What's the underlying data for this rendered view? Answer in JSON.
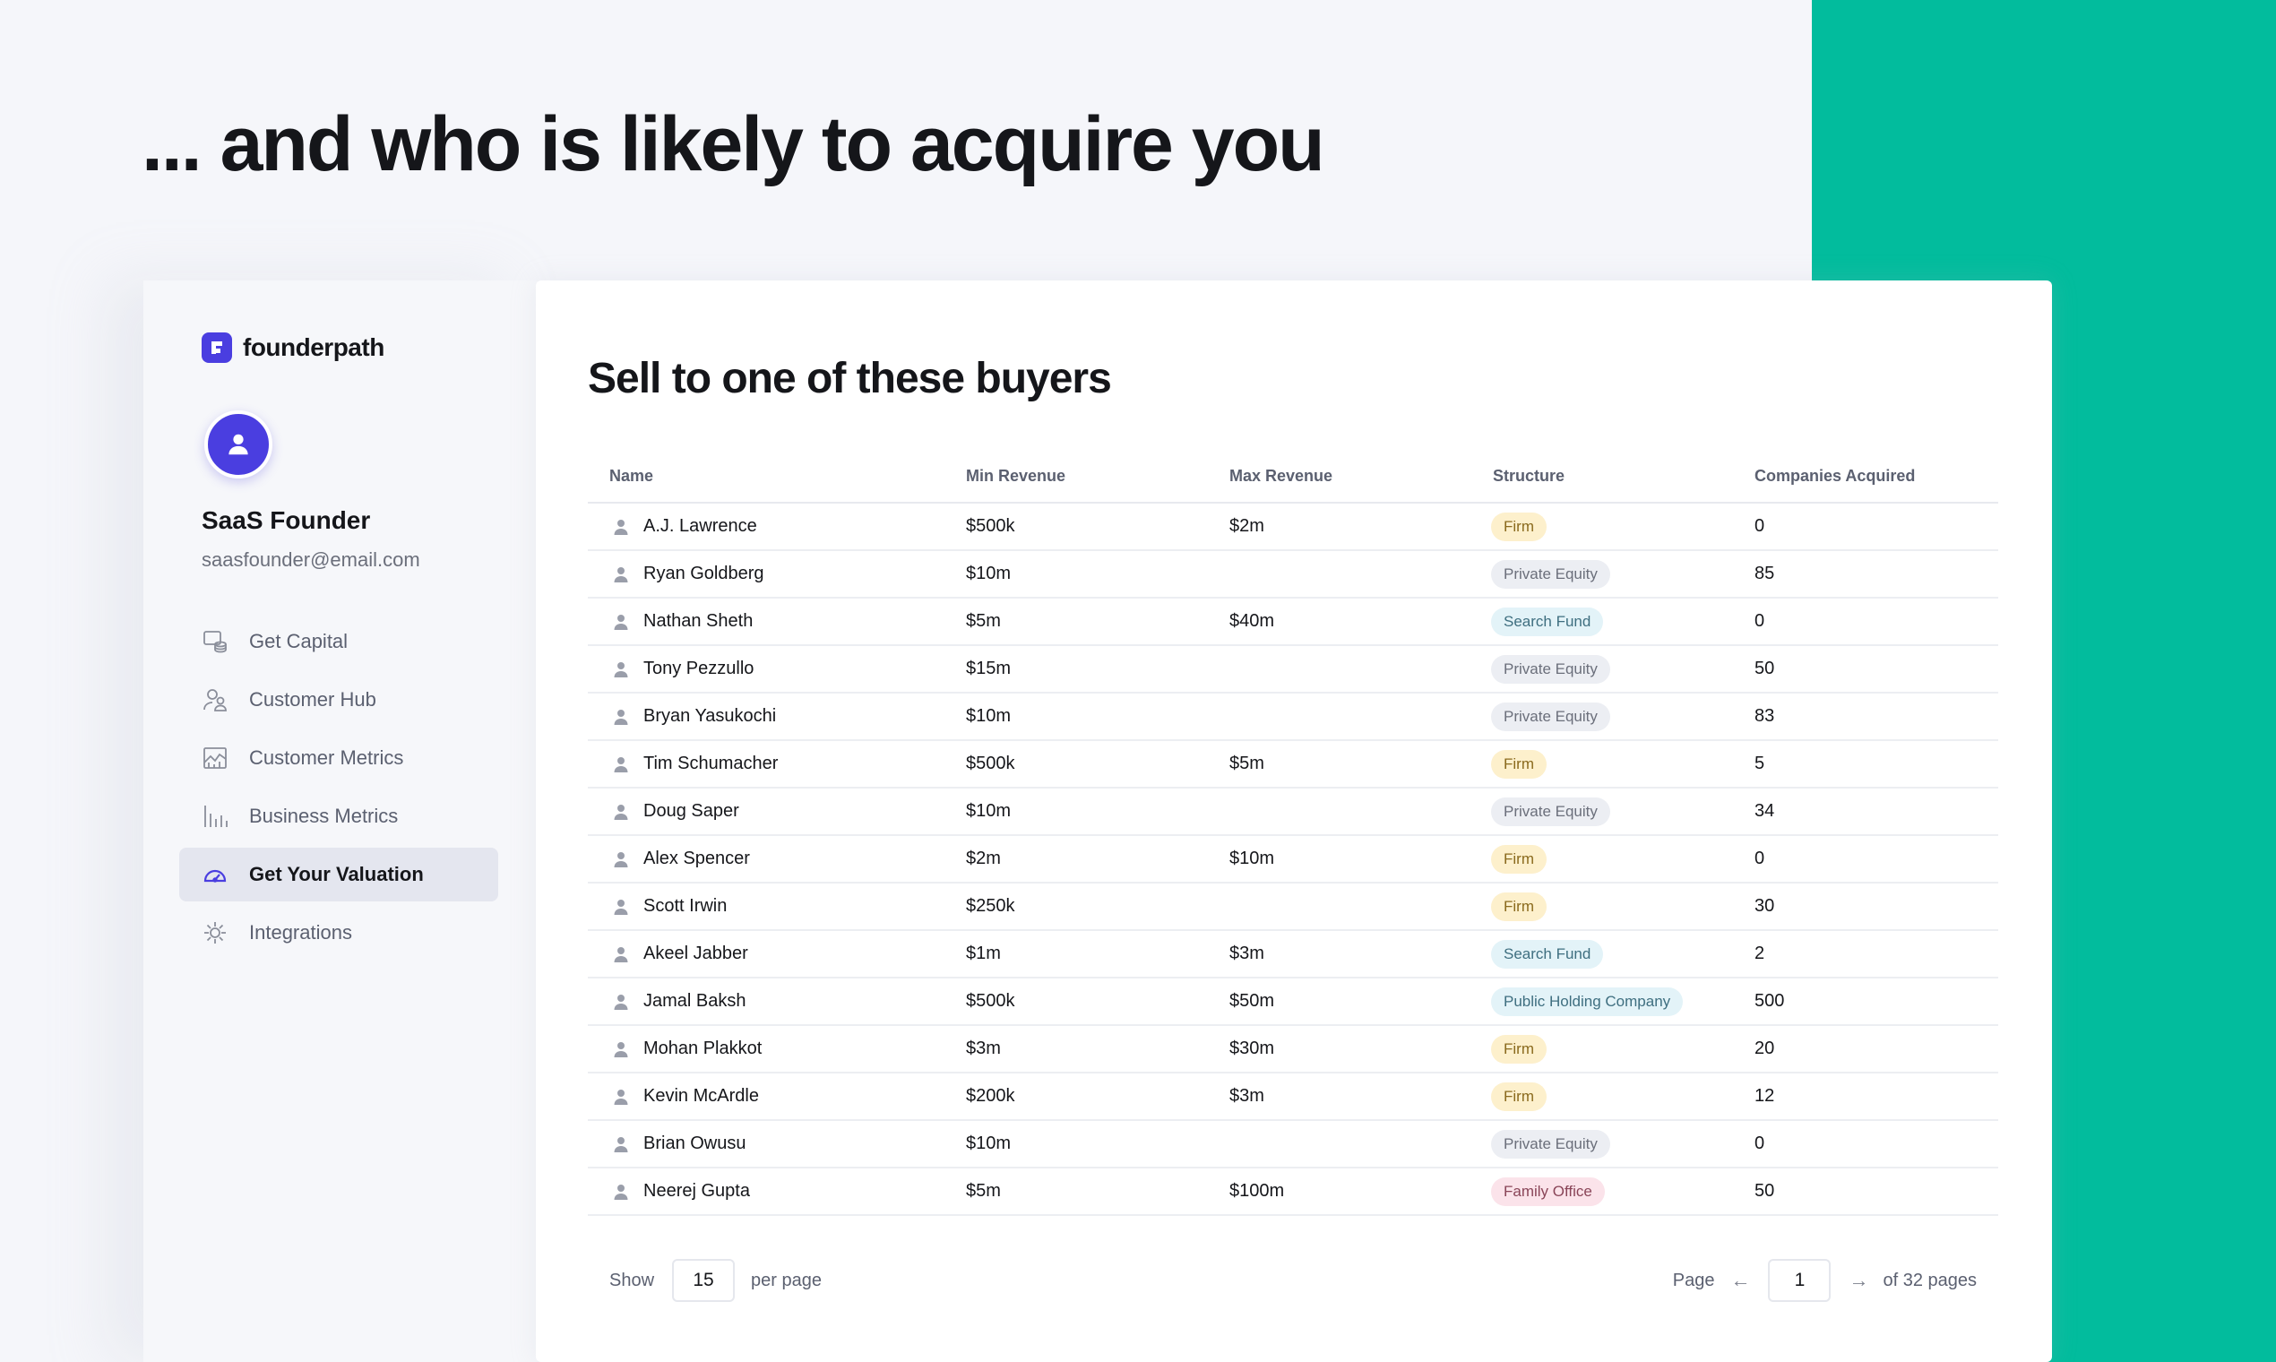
{
  "headline": "... and who is likely to acquire you",
  "brand": {
    "name": "founderpath",
    "color": "#4a3ee0"
  },
  "user": {
    "name": "SaaS Founder",
    "email": "saasfounder@email.com"
  },
  "nav": [
    {
      "label": "Get Capital",
      "icon": "coins-icon",
      "active": false
    },
    {
      "label": "Customer Hub",
      "icon": "users-icon",
      "active": false
    },
    {
      "label": "Customer Metrics",
      "icon": "chart-area-icon",
      "active": false
    },
    {
      "label": "Business Metrics",
      "icon": "bar-chart-icon",
      "active": false
    },
    {
      "label": "Get Your Valuation",
      "icon": "gauge-icon",
      "active": true
    },
    {
      "label": "Integrations",
      "icon": "integrations-icon",
      "active": false
    }
  ],
  "main": {
    "title": "Sell to one of these buyers",
    "columns": [
      "Name",
      "Min Revenue",
      "Max Revenue",
      "Structure",
      "Companies Acquired"
    ],
    "rows": [
      {
        "name": "A.J. Lawrence",
        "min": "$500k",
        "max": "$2m",
        "structure": "Firm",
        "acquired": "0"
      },
      {
        "name": "Ryan Goldberg",
        "min": "$10m",
        "max": "",
        "structure": "Private Equity",
        "acquired": "85"
      },
      {
        "name": "Nathan Sheth",
        "min": "$5m",
        "max": "$40m",
        "structure": "Search Fund",
        "acquired": "0"
      },
      {
        "name": "Tony Pezzullo",
        "min": "$15m",
        "max": "",
        "structure": "Private Equity",
        "acquired": "50"
      },
      {
        "name": "Bryan Yasukochi",
        "min": "$10m",
        "max": "",
        "structure": "Private Equity",
        "acquired": "83"
      },
      {
        "name": "Tim Schumacher",
        "min": "$500k",
        "max": "$5m",
        "structure": "Firm",
        "acquired": "5"
      },
      {
        "name": "Doug Saper",
        "min": "$10m",
        "max": "",
        "structure": "Private Equity",
        "acquired": "34"
      },
      {
        "name": "Alex Spencer",
        "min": "$2m",
        "max": "$10m",
        "structure": "Firm",
        "acquired": "0"
      },
      {
        "name": "Scott Irwin",
        "min": "$250k",
        "max": "",
        "structure": "Firm",
        "acquired": "30"
      },
      {
        "name": "Akeel Jabber",
        "min": "$1m",
        "max": "$3m",
        "structure": "Search Fund",
        "acquired": "2"
      },
      {
        "name": "Jamal Baksh",
        "min": "$500k",
        "max": "$50m",
        "structure": "Public Holding Company",
        "acquired": "500"
      },
      {
        "name": "Mohan Plakkot",
        "min": "$3m",
        "max": "$30m",
        "structure": "Firm",
        "acquired": "20"
      },
      {
        "name": "Kevin McArdle",
        "min": "$200k",
        "max": "$3m",
        "structure": "Firm",
        "acquired": "12"
      },
      {
        "name": "Brian Owusu",
        "min": "$10m",
        "max": "",
        "structure": "Private Equity",
        "acquired": "0"
      },
      {
        "name": "Neerej Gupta",
        "min": "$5m",
        "max": "$100m",
        "structure": "Family Office",
        "acquired": "50"
      }
    ],
    "badge_colors": {
      "Firm": {
        "bg": "#fdf0cc",
        "fg": "#8a6a1d"
      },
      "Private Equity": {
        "bg": "#eceef3",
        "fg": "#6b6f7b"
      },
      "Search Fund": {
        "bg": "#e3f3f8",
        "fg": "#3f6f80"
      },
      "Public Holding Company": {
        "bg": "#e3f3f8",
        "fg": "#3f6f80"
      },
      "Family Office": {
        "bg": "#fbe3ea",
        "fg": "#8a4558"
      }
    }
  },
  "pager": {
    "show_label": "Show",
    "per_page_value": "15",
    "per_page_label": "per page",
    "page_label": "Page",
    "current_page": "1",
    "total_label": "of 32 pages",
    "prev_arrow": "←",
    "next_arrow": "→"
  },
  "colors": {
    "accent_green": "#02bc9d",
    "background": "#f5f6fa"
  }
}
